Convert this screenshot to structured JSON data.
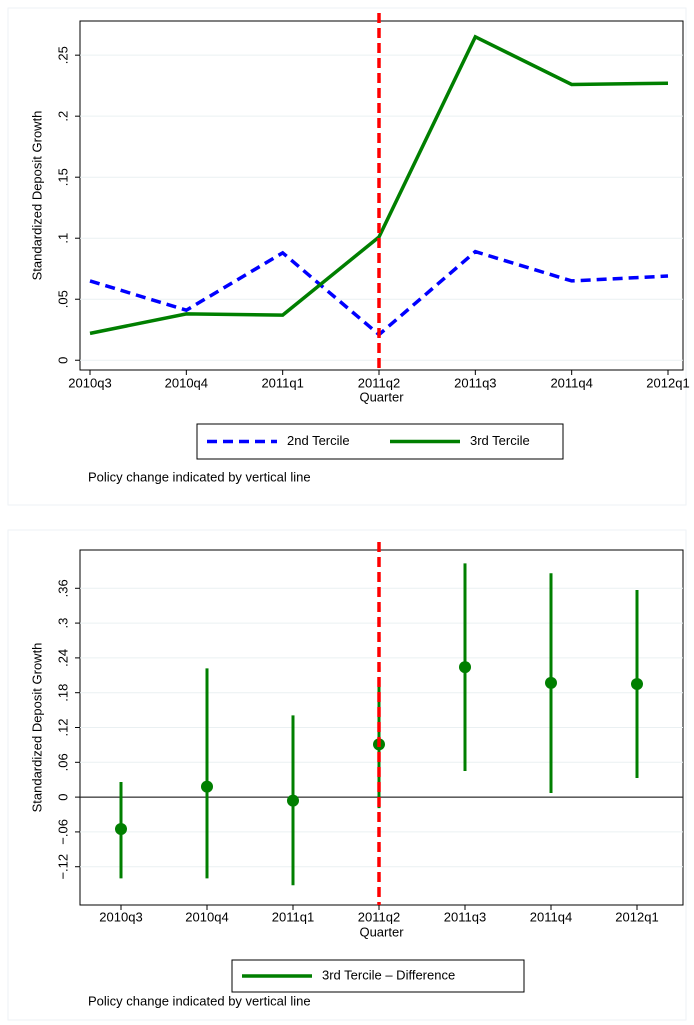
{
  "chart_data": [
    {
      "type": "line",
      "categories": [
        "2010q3",
        "2010q4",
        "2011q1",
        "2011q2",
        "2011q3",
        "2011q4",
        "2012q1"
      ],
      "series": [
        {
          "name": "2nd Tercile",
          "color": "#0000ff",
          "dashed": true,
          "values": [
            0.065,
            0.041,
            0.088,
            0.021,
            0.089,
            0.065,
            0.069
          ]
        },
        {
          "name": "3rd Tercile",
          "color": "#007f00",
          "dashed": false,
          "values": [
            0.022,
            0.038,
            0.037,
            0.101,
            0.265,
            0.226,
            0.227
          ]
        }
      ],
      "ylim": [
        -0.008,
        0.278
      ],
      "yticks": [
        {
          "value": 0,
          "label": "0"
        },
        {
          "value": 0.05,
          "label": ".05"
        },
        {
          "value": 0.1,
          "label": ".1"
        },
        {
          "value": 0.15,
          "label": ".15"
        },
        {
          "value": 0.2,
          "label": ".2"
        },
        {
          "value": 0.25,
          "label": ".25"
        }
      ],
      "y_label": "Standardized Deposit Growth",
      "x_label": "Quarter",
      "vline_category": "2011q2",
      "vline_color": "#ff0000",
      "note": "Policy change indicated by vertical line",
      "grid": true
    },
    {
      "type": "errorbar",
      "categories": [
        "2010q3",
        "2010q4",
        "2011q1",
        "2011q2",
        "2011q3",
        "2011q4",
        "2012q1"
      ],
      "series": [
        {
          "name": "3rd Tercile – Difference",
          "color": "#007f00",
          "values": [
            -0.055,
            0.018,
            -0.006,
            0.091,
            0.224,
            0.197,
            0.195
          ],
          "lower": [
            -0.14,
            -0.14,
            -0.152,
            -0.019,
            0.045,
            0.007,
            0.033
          ],
          "upper": [
            0.026,
            0.222,
            0.141,
            0.198,
            0.403,
            0.386,
            0.357
          ]
        }
      ],
      "ylim": [
        -0.186,
        0.426
      ],
      "yticks": [
        {
          "value": -0.12,
          "label": "−.12"
        },
        {
          "value": -0.06,
          "label": "−.06"
        },
        {
          "value": 0,
          "label": "0"
        },
        {
          "value": 0.06,
          "label": ".06"
        },
        {
          "value": 0.12,
          "label": ".12"
        },
        {
          "value": 0.18,
          "label": ".18"
        },
        {
          "value": 0.24,
          "label": ".24"
        },
        {
          "value": 0.3,
          "label": ".3"
        },
        {
          "value": 0.36,
          "label": ".36"
        }
      ],
      "y_label": "Standardized Deposit Growth",
      "x_label": "Quarter",
      "vline_category": "2011q2",
      "vline_color": "#ff0000",
      "zero_line": true,
      "note": "Policy change indicated by vertical line",
      "grid": true
    }
  ]
}
